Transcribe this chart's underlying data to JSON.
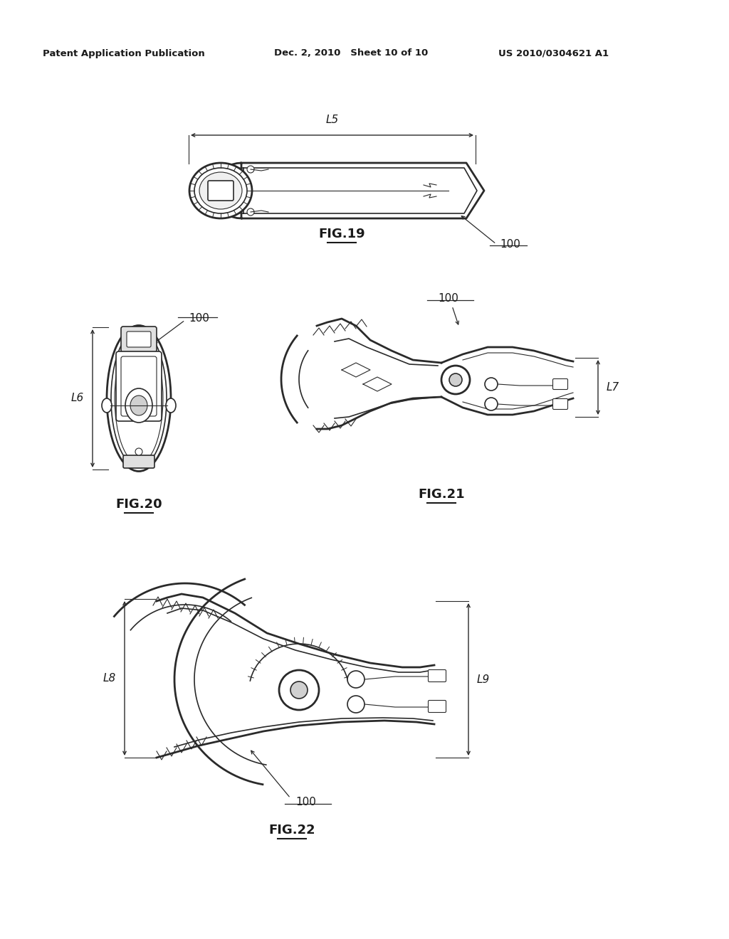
{
  "bg_color": "#ffffff",
  "text_color": "#1a1a1a",
  "line_color": "#2a2a2a",
  "header_left": "Patent Application Publication",
  "header_center": "Dec. 2, 2010   Sheet 10 of 10",
  "header_right": "US 2010/0304621 A1",
  "fig19_label": "FIG.19",
  "fig20_label": "FIG.20",
  "fig21_label": "FIG.21",
  "fig22_label": "FIG.22",
  "ref_100": "100",
  "dim_L5": "L5",
  "dim_L6": "L6",
  "dim_L7": "L7",
  "dim_L8": "L8",
  "dim_L9": "L9",
  "header_fontsize": 9.5,
  "label_fontsize": 13,
  "dim_fontsize": 11,
  "ref_fontsize": 11
}
